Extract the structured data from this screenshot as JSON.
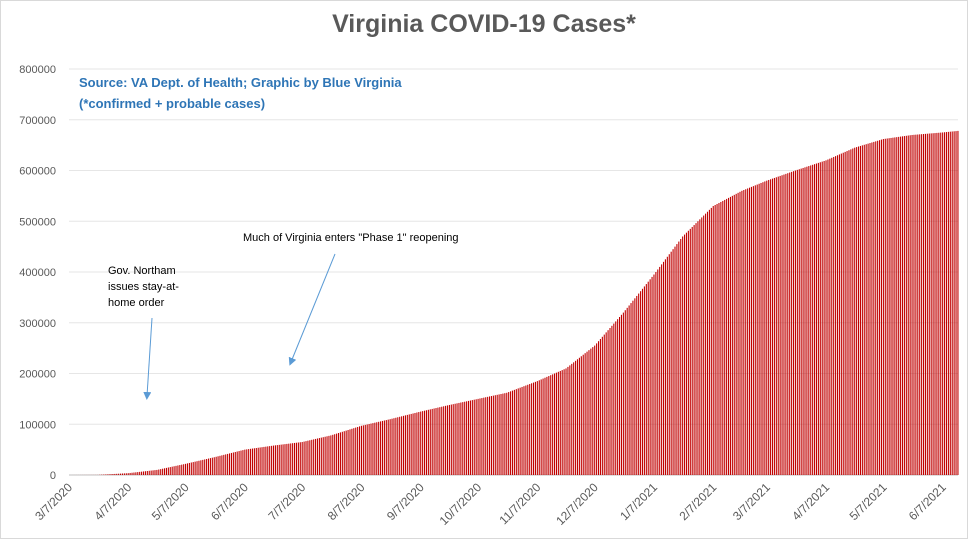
{
  "chart_data": {
    "type": "bar",
    "title": "Virginia COVID-19 Cases*",
    "source": "Source: VA Dept. of Health; Graphic by Blue Virginia",
    "note": "(*confirmed + probable cases)",
    "xlabel": "",
    "ylabel": "",
    "ylim": [
      0,
      800000
    ],
    "y_ticks": [
      "0",
      "100000",
      "200000",
      "300000",
      "400000",
      "500000",
      "600000",
      "700000",
      "800000"
    ],
    "x_tick_labels": [
      "3/7/2020",
      "4/7/2020",
      "5/7/2020",
      "6/7/2020",
      "7/7/2020",
      "8/7/2020",
      "9/7/2020",
      "10/7/2020",
      "11/7/2020",
      "12/7/2020",
      "1/7/2021",
      "2/7/2021",
      "3/7/2021",
      "4/7/2021",
      "5/7/2021",
      "6/7/2021"
    ],
    "x_range": [
      "3/7/2020",
      "6/15/2021"
    ],
    "grid": true,
    "bar_color": "#c00000",
    "series": [
      {
        "dates": [
          "3/7/2020",
          "3/22/2020",
          "4/7/2020",
          "4/22/2020",
          "5/7/2020",
          "5/22/2020",
          "6/7/2020",
          "6/22/2020",
          "7/7/2020",
          "7/22/2020",
          "8/7/2020",
          "8/22/2020",
          "9/7/2020",
          "9/22/2020",
          "10/7/2020",
          "10/22/2020",
          "11/7/2020",
          "11/22/2020",
          "12/7/2020",
          "12/22/2020",
          "1/7/2021",
          "1/22/2021",
          "2/7/2021",
          "2/22/2021",
          "3/7/2021",
          "3/22/2021",
          "4/7/2021",
          "4/22/2021",
          "5/7/2021",
          "5/22/2021",
          "6/7/2021",
          "6/15/2021"
        ],
        "values": [
          0,
          200,
          3600,
          10000,
          22000,
          35000,
          50000,
          58000,
          65000,
          78000,
          97000,
          110000,
          125000,
          138000,
          150000,
          162000,
          185000,
          210000,
          255000,
          320000,
          395000,
          470000,
          530000,
          560000,
          580000,
          600000,
          620000,
          645000,
          662000,
          670000,
          675000,
          678000
        ]
      }
    ]
  },
  "annotations": {
    "stay_home": "Gov. Northam issues stay-at-home order",
    "phase1": "Much of Virginia enters \"Phase 1\" reopening"
  }
}
